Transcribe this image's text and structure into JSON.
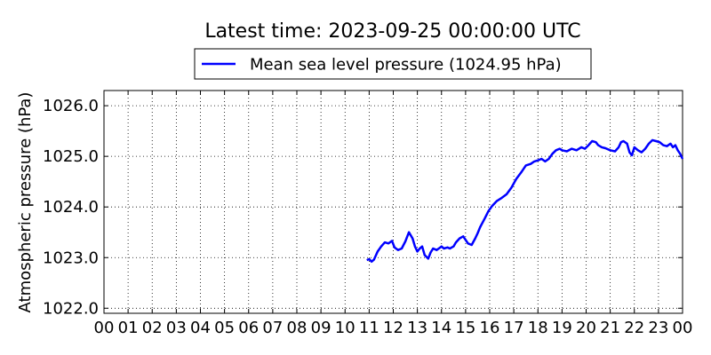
{
  "chart_data": {
    "type": "line",
    "title": "Latest time: 2023-09-25 00:00:00 UTC",
    "xlabel": "",
    "ylabel": "Atmospheric pressure (hPa)",
    "x_unit": "hour (UTC)",
    "xlim": [
      0,
      24
    ],
    "ylim": [
      1021.9,
      1026.3
    ],
    "x_ticks": [
      0,
      1,
      2,
      3,
      4,
      5,
      6,
      7,
      8,
      9,
      10,
      11,
      12,
      13,
      14,
      15,
      16,
      17,
      18,
      19,
      20,
      21,
      22,
      23,
      24
    ],
    "x_tick_labels": [
      "00",
      "01",
      "02",
      "03",
      "04",
      "05",
      "06",
      "07",
      "08",
      "09",
      "10",
      "11",
      "12",
      "13",
      "14",
      "15",
      "16",
      "17",
      "18",
      "19",
      "20",
      "21",
      "22",
      "23",
      "00"
    ],
    "y_ticks": [
      1022.0,
      1023.0,
      1024.0,
      1025.0,
      1026.0
    ],
    "y_tick_labels": [
      "1022.0",
      "1023.0",
      "1024.0",
      "1025.0",
      "1026.0"
    ],
    "grid": true,
    "legend_position": "top-center, outside",
    "series": [
      {
        "name": "Mean sea level pressure (1024.95 hPa)",
        "color": "#0000ff",
        "x": [
          10.9,
          11.0,
          11.1,
          11.2,
          11.35,
          11.5,
          11.65,
          11.8,
          11.95,
          12.05,
          12.2,
          12.35,
          12.5,
          12.65,
          12.8,
          12.9,
          13.0,
          13.1,
          13.2,
          13.3,
          13.45,
          13.55,
          13.65,
          13.8,
          14.0,
          14.1,
          14.25,
          14.35,
          14.5,
          14.6,
          14.75,
          14.9,
          15.0,
          15.1,
          15.25,
          15.4,
          15.5,
          15.6,
          15.8,
          15.95,
          16.1,
          16.3,
          16.5,
          16.7,
          16.9,
          17.1,
          17.3,
          17.5,
          17.7,
          17.85,
          18.0,
          18.15,
          18.3,
          18.45,
          18.6,
          18.75,
          18.9,
          19.0,
          19.2,
          19.4,
          19.6,
          19.8,
          19.95,
          20.1,
          20.25,
          20.4,
          20.5,
          20.65,
          20.8,
          21.0,
          21.2,
          21.35,
          21.45,
          21.55,
          21.7,
          21.8,
          21.9,
          22.0,
          22.15,
          22.3,
          22.45,
          22.6,
          22.75,
          22.9,
          23.05,
          23.2,
          23.35,
          23.5,
          23.6,
          23.7,
          23.8,
          23.9,
          24.0
        ],
        "y": [
          1022.95,
          1022.97,
          1022.92,
          1022.96,
          1023.12,
          1023.22,
          1023.3,
          1023.28,
          1023.33,
          1023.2,
          1023.15,
          1023.18,
          1023.32,
          1023.5,
          1023.38,
          1023.22,
          1023.12,
          1023.18,
          1023.22,
          1023.05,
          1022.98,
          1023.1,
          1023.18,
          1023.15,
          1023.22,
          1023.18,
          1023.2,
          1023.18,
          1023.22,
          1023.3,
          1023.38,
          1023.42,
          1023.35,
          1023.28,
          1023.25,
          1023.38,
          1023.48,
          1023.6,
          1023.78,
          1023.92,
          1024.02,
          1024.12,
          1024.18,
          1024.25,
          1024.38,
          1024.55,
          1024.68,
          1024.82,
          1024.85,
          1024.9,
          1024.92,
          1024.95,
          1024.9,
          1024.95,
          1025.05,
          1025.12,
          1025.15,
          1025.12,
          1025.1,
          1025.15,
          1025.12,
          1025.18,
          1025.15,
          1025.22,
          1025.3,
          1025.28,
          1025.22,
          1025.18,
          1025.16,
          1025.12,
          1025.1,
          1025.18,
          1025.28,
          1025.3,
          1025.25,
          1025.08,
          1025.02,
          1025.18,
          1025.12,
          1025.08,
          1025.15,
          1025.25,
          1025.32,
          1025.3,
          1025.28,
          1025.22,
          1025.2,
          1025.25,
          1025.18,
          1025.22,
          1025.12,
          1025.05,
          1024.95
        ]
      }
    ]
  }
}
